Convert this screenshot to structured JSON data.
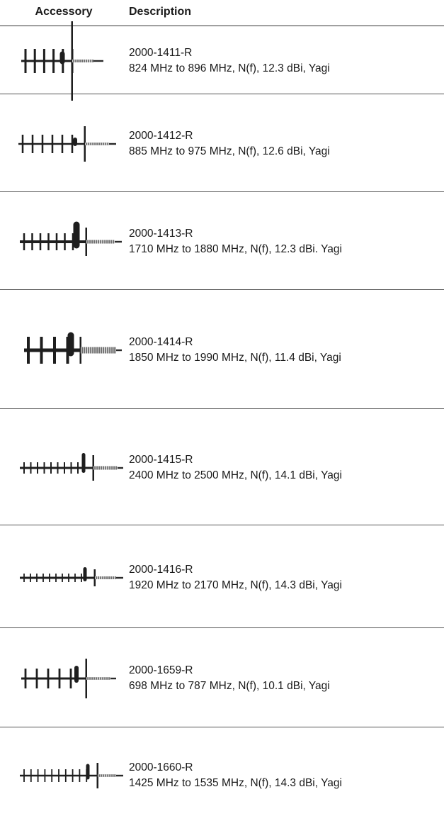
{
  "header": {
    "accessory": "Accessory",
    "description": "Description"
  },
  "rows": [
    {
      "part_number": "2000-1411-R",
      "spec": "824 MHz to 896 MHz, N(f), 12.3 dBi, Yagi",
      "icon": "yagi-antenna-icon"
    },
    {
      "part_number": "2000-1412-R",
      "spec": "885 MHz to 975 MHz, N(f), 12.6 dBi, Yagi",
      "icon": "yagi-antenna-icon"
    },
    {
      "part_number": "2000-1413-R",
      "spec": "1710 MHz to 1880 MHz, N(f), 12.3 dBi. Yagi",
      "icon": "yagi-antenna-icon"
    },
    {
      "part_number": "2000-1414-R",
      "spec": "1850 MHz to 1990 MHz, N(f), 11.4 dBi, Yagi",
      "icon": "yagi-antenna-icon"
    },
    {
      "part_number": "2000-1415-R",
      "spec": "2400 MHz to 2500 MHz, N(f), 14.1 dBi, Yagi",
      "icon": "yagi-antenna-icon"
    },
    {
      "part_number": "2000-1416-R",
      "spec": "1920 MHz to 2170 MHz, N(f), 14.3 dBi, Yagi",
      "icon": "yagi-antenna-icon"
    },
    {
      "part_number": "2000-1659-R",
      "spec": "698 MHz to 787 MHz, N(f), 10.1 dBi, Yagi",
      "icon": "yagi-antenna-icon"
    },
    {
      "part_number": "2000-1660-R",
      "spec": "1425 MHz to 1535 MHz, N(f), 14.3 dBi, Yagi",
      "icon": "yagi-antenna-icon"
    }
  ]
}
